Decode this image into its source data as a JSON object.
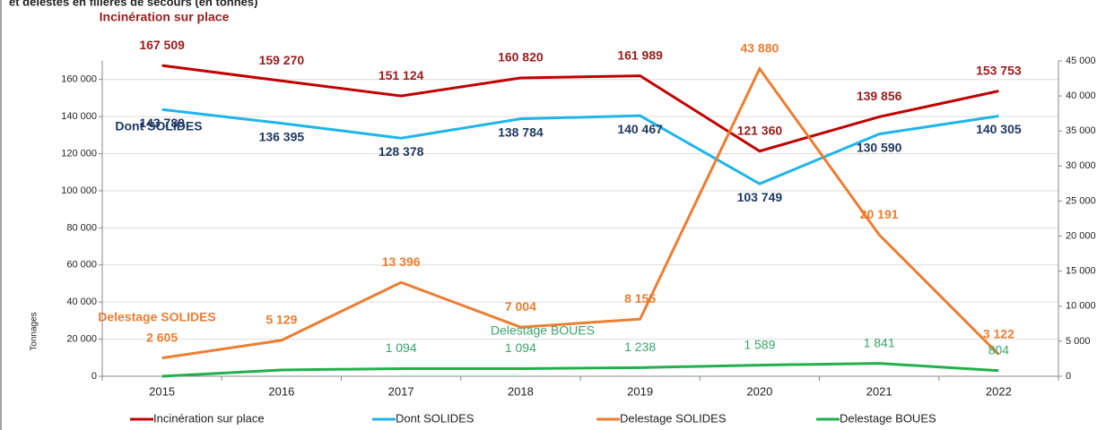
{
  "chart_data": {
    "type": "line",
    "title": "et délestés en filières de secours (en tonnes)",
    "y_label": "Tonnages",
    "categories": [
      "2015",
      "2016",
      "2017",
      "2018",
      "2019",
      "2020",
      "2021",
      "2022"
    ],
    "series": [
      {
        "name": "Incinération  sur place",
        "color": "#c00000",
        "label_color": "#9b1b1b",
        "values": [
          167509,
          159270,
          151124,
          160820,
          161989,
          121360,
          139856,
          153753
        ],
        "value_labels": [
          "167 509",
          "159 270",
          "151 124",
          "160 820",
          "161 989",
          "121 360",
          "139 856",
          "153 753"
        ]
      },
      {
        "name": "Dont SOLIDES",
        "color": "#1fb5ea",
        "label_color": "#1f3864",
        "values": [
          143789,
          136395,
          128378,
          138784,
          140467,
          103749,
          130590,
          140305
        ],
        "value_labels": [
          "143 789",
          "136 395",
          "128 378",
          "138 784",
          "140 467",
          "103 749",
          "130 590",
          "140 305"
        ]
      },
      {
        "name": "Delestage SOLIDES",
        "color": "#ed7d31",
        "label_color": "#ed7d31",
        "axis": "y2",
        "values": [
          2605,
          5129,
          13396,
          7004,
          8155,
          43880,
          20191,
          3122
        ],
        "value_labels": [
          "2 605",
          "5 129",
          "13 396",
          "7 004",
          "8 155",
          "43 880",
          "20 191",
          "3 122"
        ]
      },
      {
        "name": "Delestage BOUES",
        "color": "#22b04b",
        "label_color": "#3aa56a",
        "axis": "y2",
        "values": [
          0,
          900,
          1094,
          1094,
          1238,
          1589,
          1841,
          804
        ],
        "value_labels": [
          null,
          null,
          "1 094",
          "1 094",
          "1 238",
          "1 589",
          "1 841",
          "804"
        ]
      }
    ],
    "ylim": [
      0,
      170000
    ],
    "yticks": [
      0,
      {
        "value": 20000,
        "label": "20 000"
      },
      {
        "value": 40000,
        "label": "40 000"
      },
      {
        "value": 60000,
        "label": "60 000"
      },
      {
        "value": 80000,
        "label": "80 000"
      },
      {
        "value": 100000,
        "label": "100 000"
      },
      {
        "value": 120000,
        "label": "120 000"
      },
      {
        "value": 140000,
        "label": "140 000"
      },
      {
        "value": 160000,
        "label": "160 000"
      }
    ],
    "y2lim": [
      0,
      45000
    ],
    "y2ticks": [
      0,
      {
        "value": 5000,
        "label": "5 000"
      },
      {
        "value": 10000,
        "label": "10 000"
      },
      {
        "value": 15000,
        "label": "15 000"
      },
      {
        "value": 20000,
        "label": "20 000"
      },
      {
        "value": 25000,
        "label": "25 000"
      },
      {
        "value": 30000,
        "label": "30 000"
      },
      {
        "value": 35000,
        "label": "35 000"
      },
      {
        "value": 40000,
        "label": "40 000"
      },
      {
        "value": 45000,
        "label": "45 000"
      }
    ],
    "grid": true
  }
}
